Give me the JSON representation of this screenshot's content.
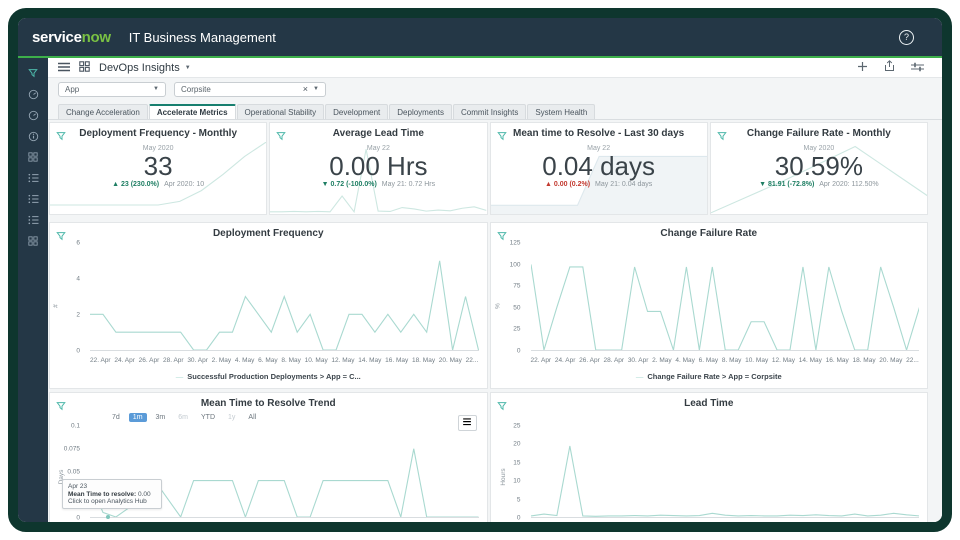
{
  "colors": {
    "frame_border": "#0e362e",
    "header_bg": "#243746",
    "accent_green": "#3daf4a",
    "logo_green": "#7ac143",
    "teal_icon": "#4db8aa",
    "chart_line": "#a9d9d0",
    "tab_active_border": "#177f6f",
    "range_active_bg": "#5b9bd8",
    "delta_good": "#1e7e63",
    "delta_bad": "#c3392f"
  },
  "glyphs": {
    "caret": "▼",
    "clear": "×",
    "help": "?",
    "legend_dash": "—",
    "menu": "≡"
  },
  "header": {
    "logo_service": "service",
    "logo_now": "now",
    "app_title": "IT Business Management"
  },
  "toolbar": {
    "dashboard_name": "DevOps Insights"
  },
  "filters": {
    "app_label": "App",
    "value": "Corpsite"
  },
  "tabs": [
    {
      "label": "Change Acceleration",
      "active": false
    },
    {
      "label": "Accelerate Metrics",
      "active": true
    },
    {
      "label": "Operational Stability",
      "active": false
    },
    {
      "label": "Development",
      "active": false
    },
    {
      "label": "Deployments",
      "active": false
    },
    {
      "label": "Commit Insights",
      "active": false
    },
    {
      "label": "System Health",
      "active": false
    }
  ],
  "sidebar": {
    "items": [
      {
        "name": "filter-funnel-icon",
        "icon": "funnel"
      },
      {
        "name": "history-icon",
        "icon": "gauge"
      },
      {
        "name": "refresh-icon",
        "icon": "gauge"
      },
      {
        "name": "info-icon",
        "icon": "info"
      },
      {
        "name": "apps-grid-icon",
        "icon": "grid"
      },
      {
        "name": "list-icon-1",
        "icon": "list"
      },
      {
        "name": "list-icon-2",
        "icon": "list"
      },
      {
        "name": "list-icon-3",
        "icon": "list"
      },
      {
        "name": "grid-icon-2",
        "icon": "grid"
      }
    ]
  },
  "kpis": [
    {
      "title": "Deployment Frequency - Monthly",
      "date": "May 2020",
      "value": "33",
      "delta": "▲ 23 (230.0%)",
      "delta_direction": "up-good",
      "previous": "Apr 2020: 10",
      "spark": {
        "values": [
          1,
          1,
          1,
          1,
          1,
          1,
          1.4,
          2.6,
          4.4,
          6.4,
          8
        ],
        "ymax": 8,
        "color": "#cde7e1"
      }
    },
    {
      "title": "Average Lead Time",
      "date": "May 22",
      "value": "0.00 Hrs",
      "delta": "▼ 0.72 (-100.0%)",
      "delta_direction": "down-good",
      "previous": "May 21: 0.72 Hrs",
      "spark": {
        "values": [
          0.3,
          0.3,
          0.35,
          0.3,
          0.35,
          0.3,
          2.5,
          0.3,
          9,
          0.4,
          0.35,
          0.9,
          0.7,
          0.4,
          0.55,
          0.45,
          0.8,
          1,
          0.5
        ],
        "ymax": 10,
        "color": "#cde7e1"
      }
    },
    {
      "title": "Mean time to Resolve - Last 30 days",
      "date": "May 22",
      "value": "0.04 days",
      "delta": "▲ 0.00 (0.2%)",
      "delta_direction": "up-bad",
      "previous": "May 21: 0.04 days",
      "spark": {
        "values": [
          0.006,
          0.006,
          0.006,
          0.006,
          0.006,
          0.04,
          0.04,
          0.04,
          0.04,
          0.04,
          0.04
        ],
        "ymax": 0.05,
        "color": "#dde8ed",
        "fill": "#f0f4f6"
      }
    },
    {
      "title": "Change Failure Rate - Monthly",
      "date": "May 2020",
      "value": "30.59%",
      "delta": "▼ 81.91 (-72.8%)",
      "delta_direction": "down-good",
      "previous": "Apr 2020: 112.50%",
      "spark": {
        "values": [
          2,
          55,
          112.5,
          30.6
        ],
        "ymax": 120,
        "color": "#cde7e1"
      }
    }
  ],
  "chart_data": [
    {
      "type": "line",
      "title": "Deployment Frequency",
      "ylabel": "#",
      "ymin": 0,
      "ymax": 6,
      "yticks": [
        0,
        2,
        4,
        6
      ],
      "grid": false,
      "legend_position": "bottom",
      "categories": [
        "22. Apr",
        "24. Apr",
        "26. Apr",
        "28. Apr",
        "30. Apr",
        "2. May",
        "4. May",
        "6. May",
        "8. May",
        "10. May",
        "12. May",
        "14. May",
        "16. May",
        "18. May",
        "20. May",
        "22..."
      ],
      "series": [
        {
          "name": "Successful Production Deployments > App = C...",
          "color": "#a9d9d0",
          "values": [
            2,
            2,
            1,
            1,
            1,
            1,
            1,
            1,
            0,
            0,
            1,
            1,
            3,
            2,
            1,
            3,
            1,
            2,
            0,
            0,
            2,
            2,
            1,
            2,
            1,
            2,
            1,
            5,
            0,
            3,
            0
          ]
        }
      ]
    },
    {
      "type": "line",
      "title": "Change Failure Rate",
      "ylabel": "%",
      "ymin": 0,
      "ymax": 125,
      "yticks": [
        0,
        25,
        50,
        75,
        100,
        125
      ],
      "grid": false,
      "legend_position": "bottom",
      "categories": [
        "22. Apr",
        "24. Apr",
        "26. Apr",
        "28. Apr",
        "30. Apr",
        "2. May",
        "4. May",
        "6. May",
        "8. May",
        "10. May",
        "12. May",
        "14. May",
        "16. May",
        "18. May",
        "20. May",
        "22..."
      ],
      "series": [
        {
          "name": "Change Failure Rate > App = Corpsite",
          "color": "#a9d9d0",
          "values": [
            100,
            0,
            50,
            97,
            97,
            0,
            0,
            0,
            97,
            45,
            45,
            0,
            97,
            0,
            97,
            0,
            0,
            33,
            33,
            0,
            0,
            97,
            0,
            97,
            45,
            0,
            0,
            97,
            50,
            0,
            50
          ]
        }
      ]
    },
    {
      "type": "line",
      "title": "Mean Time to Resolve Trend",
      "ylabel": "Days",
      "ymin": 0,
      "ymax": 0.1,
      "yticks": [
        0,
        0.025,
        0.05,
        0.075,
        0.1
      ],
      "grid": false,
      "ranges": [
        {
          "label": "7d",
          "state": "normal"
        },
        {
          "label": "1m",
          "state": "active"
        },
        {
          "label": "3m",
          "state": "normal"
        },
        {
          "label": "6m",
          "state": "muted"
        },
        {
          "label": "YTD",
          "state": "normal"
        },
        {
          "label": "1y",
          "state": "muted"
        },
        {
          "label": "All",
          "state": "normal"
        }
      ],
      "tooltip": {
        "date": "Apr 23",
        "label": "Mean Time to resolve:",
        "value": "0.00",
        "link": "Click to open Analytics Hub"
      },
      "series": [
        {
          "color": "#a9d9d0",
          "values": [
            0.04,
            0.005,
            0,
            0.01,
            0.04,
            0.04,
            0.02,
            0,
            0.04,
            0.04,
            0.04,
            0.04,
            0,
            0.04,
            0.04,
            0.04,
            0,
            0,
            0.04,
            0.04,
            0.04,
            0.04,
            0.04,
            0.04,
            0,
            0.075,
            0,
            0,
            0,
            0,
            0
          ]
        }
      ]
    },
    {
      "type": "line",
      "title": "Lead Time",
      "ylabel": "Hours",
      "ymin": 0,
      "ymax": 25,
      "yticks": [
        0,
        5,
        10,
        15,
        20,
        25
      ],
      "grid": false,
      "series": [
        {
          "color": "#a9d9d0",
          "values": [
            0.3,
            0.8,
            0.4,
            19.5,
            0.3,
            0.2,
            0.3,
            0.3,
            0.4,
            0.3,
            0.5,
            0.4,
            0.3,
            0.4,
            1,
            0.5,
            0.3,
            0.4,
            0.3,
            0.3,
            0.5,
            0.4,
            0.6,
            0.4,
            0.3,
            0.8,
            0.3,
            0.5,
            1,
            0.6,
            0.3
          ]
        }
      ]
    }
  ]
}
